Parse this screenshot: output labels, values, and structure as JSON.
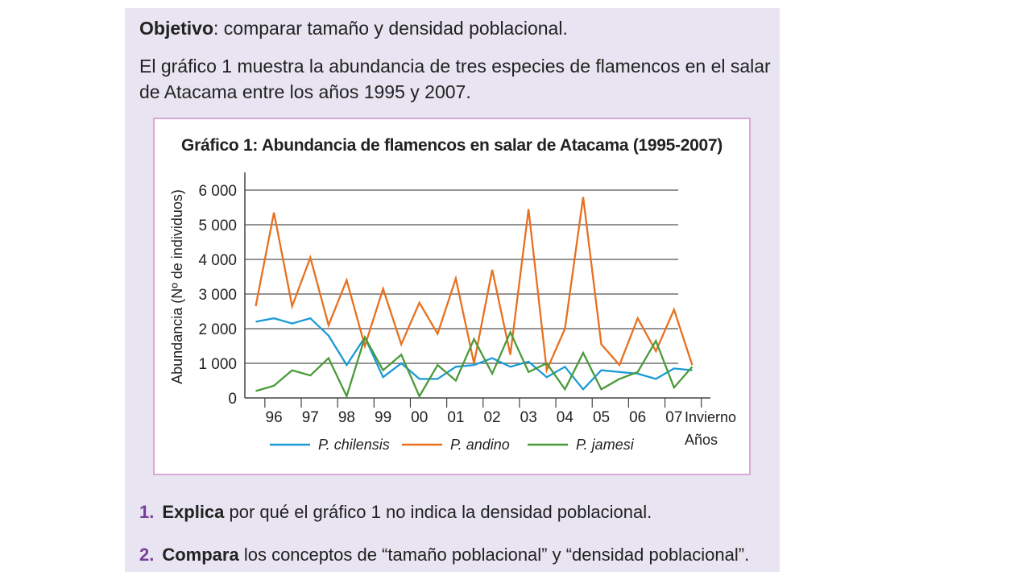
{
  "objective": {
    "label": "Objetivo",
    "text": ": comparar tamaño y densidad poblacional."
  },
  "intro": "El gráfico 1 muestra la abundancia de tres especies de flamencos en el salar de Atacama entre los años 1995 y 2007.",
  "questions": [
    {
      "number": "1.",
      "verb": "Explica",
      "text": " por qué el gráfico 1 no indica la densidad poblacional."
    },
    {
      "number": "2.",
      "verb": "Compara",
      "text": " los conceptos de “tamaño poblacional” y “densidad poblacional”."
    }
  ],
  "chart_data": {
    "type": "line",
    "title": "Gráfico 1: Abundancia de flamencos en salar de Atacama (1995-2007)",
    "ylabel": "Abundancia (Nº de individuos)",
    "xlabel": [
      "Invierno",
      "Años"
    ],
    "ylim": [
      0,
      6600
    ],
    "yticks": [
      0,
      1000,
      2000,
      3000,
      4000,
      5000,
      6000
    ],
    "ytick_labels": [
      "0",
      "1 000",
      "2 000",
      "3 000",
      "4 000",
      "5 000",
      "6 000"
    ],
    "xticks": [
      "96",
      "97",
      "98",
      "99",
      "00",
      "01",
      "02",
      "03",
      "04",
      "05",
      "06",
      "07"
    ],
    "x_offset_note": "",
    "grid": true,
    "legend": "bottom",
    "x": [
      1995.5,
      1996.0,
      1996.5,
      1997.0,
      1997.5,
      1998.0,
      1998.5,
      1999.0,
      1999.5,
      2000.0,
      2000.5,
      2001.0,
      2001.5,
      2002.0,
      2002.5,
      2003.0,
      2003.5,
      2004.0,
      2004.5,
      2005.0,
      2005.5,
      2006.0,
      2006.5,
      2007.0,
      2007.5
    ],
    "series": [
      {
        "name": "P. chilensis",
        "color": "#1a9ad6",
        "values": [
          2200,
          2300,
          2150,
          2300,
          1800,
          950,
          1750,
          600,
          1000,
          550,
          550,
          900,
          950,
          1150,
          900,
          1050,
          600,
          900,
          250,
          800,
          750,
          700,
          550,
          850,
          800
        ]
      },
      {
        "name": "P. andino",
        "color": "#e8701f",
        "values": [
          2650,
          5350,
          2650,
          4050,
          2100,
          3400,
          1500,
          3150,
          1550,
          2750,
          1850,
          3450,
          1000,
          3700,
          1250,
          5450,
          800,
          2000,
          5800,
          1550,
          950,
          2300,
          1350,
          2550,
          950
        ]
      },
      {
        "name": "P. jamesi",
        "color": "#4a9a3a",
        "values": [
          200,
          350,
          800,
          650,
          1150,
          50,
          1750,
          800,
          1250,
          50,
          950,
          500,
          1700,
          700,
          1900,
          750,
          1000,
          250,
          1300,
          250,
          550,
          750,
          1650,
          300,
          900
        ]
      }
    ]
  }
}
